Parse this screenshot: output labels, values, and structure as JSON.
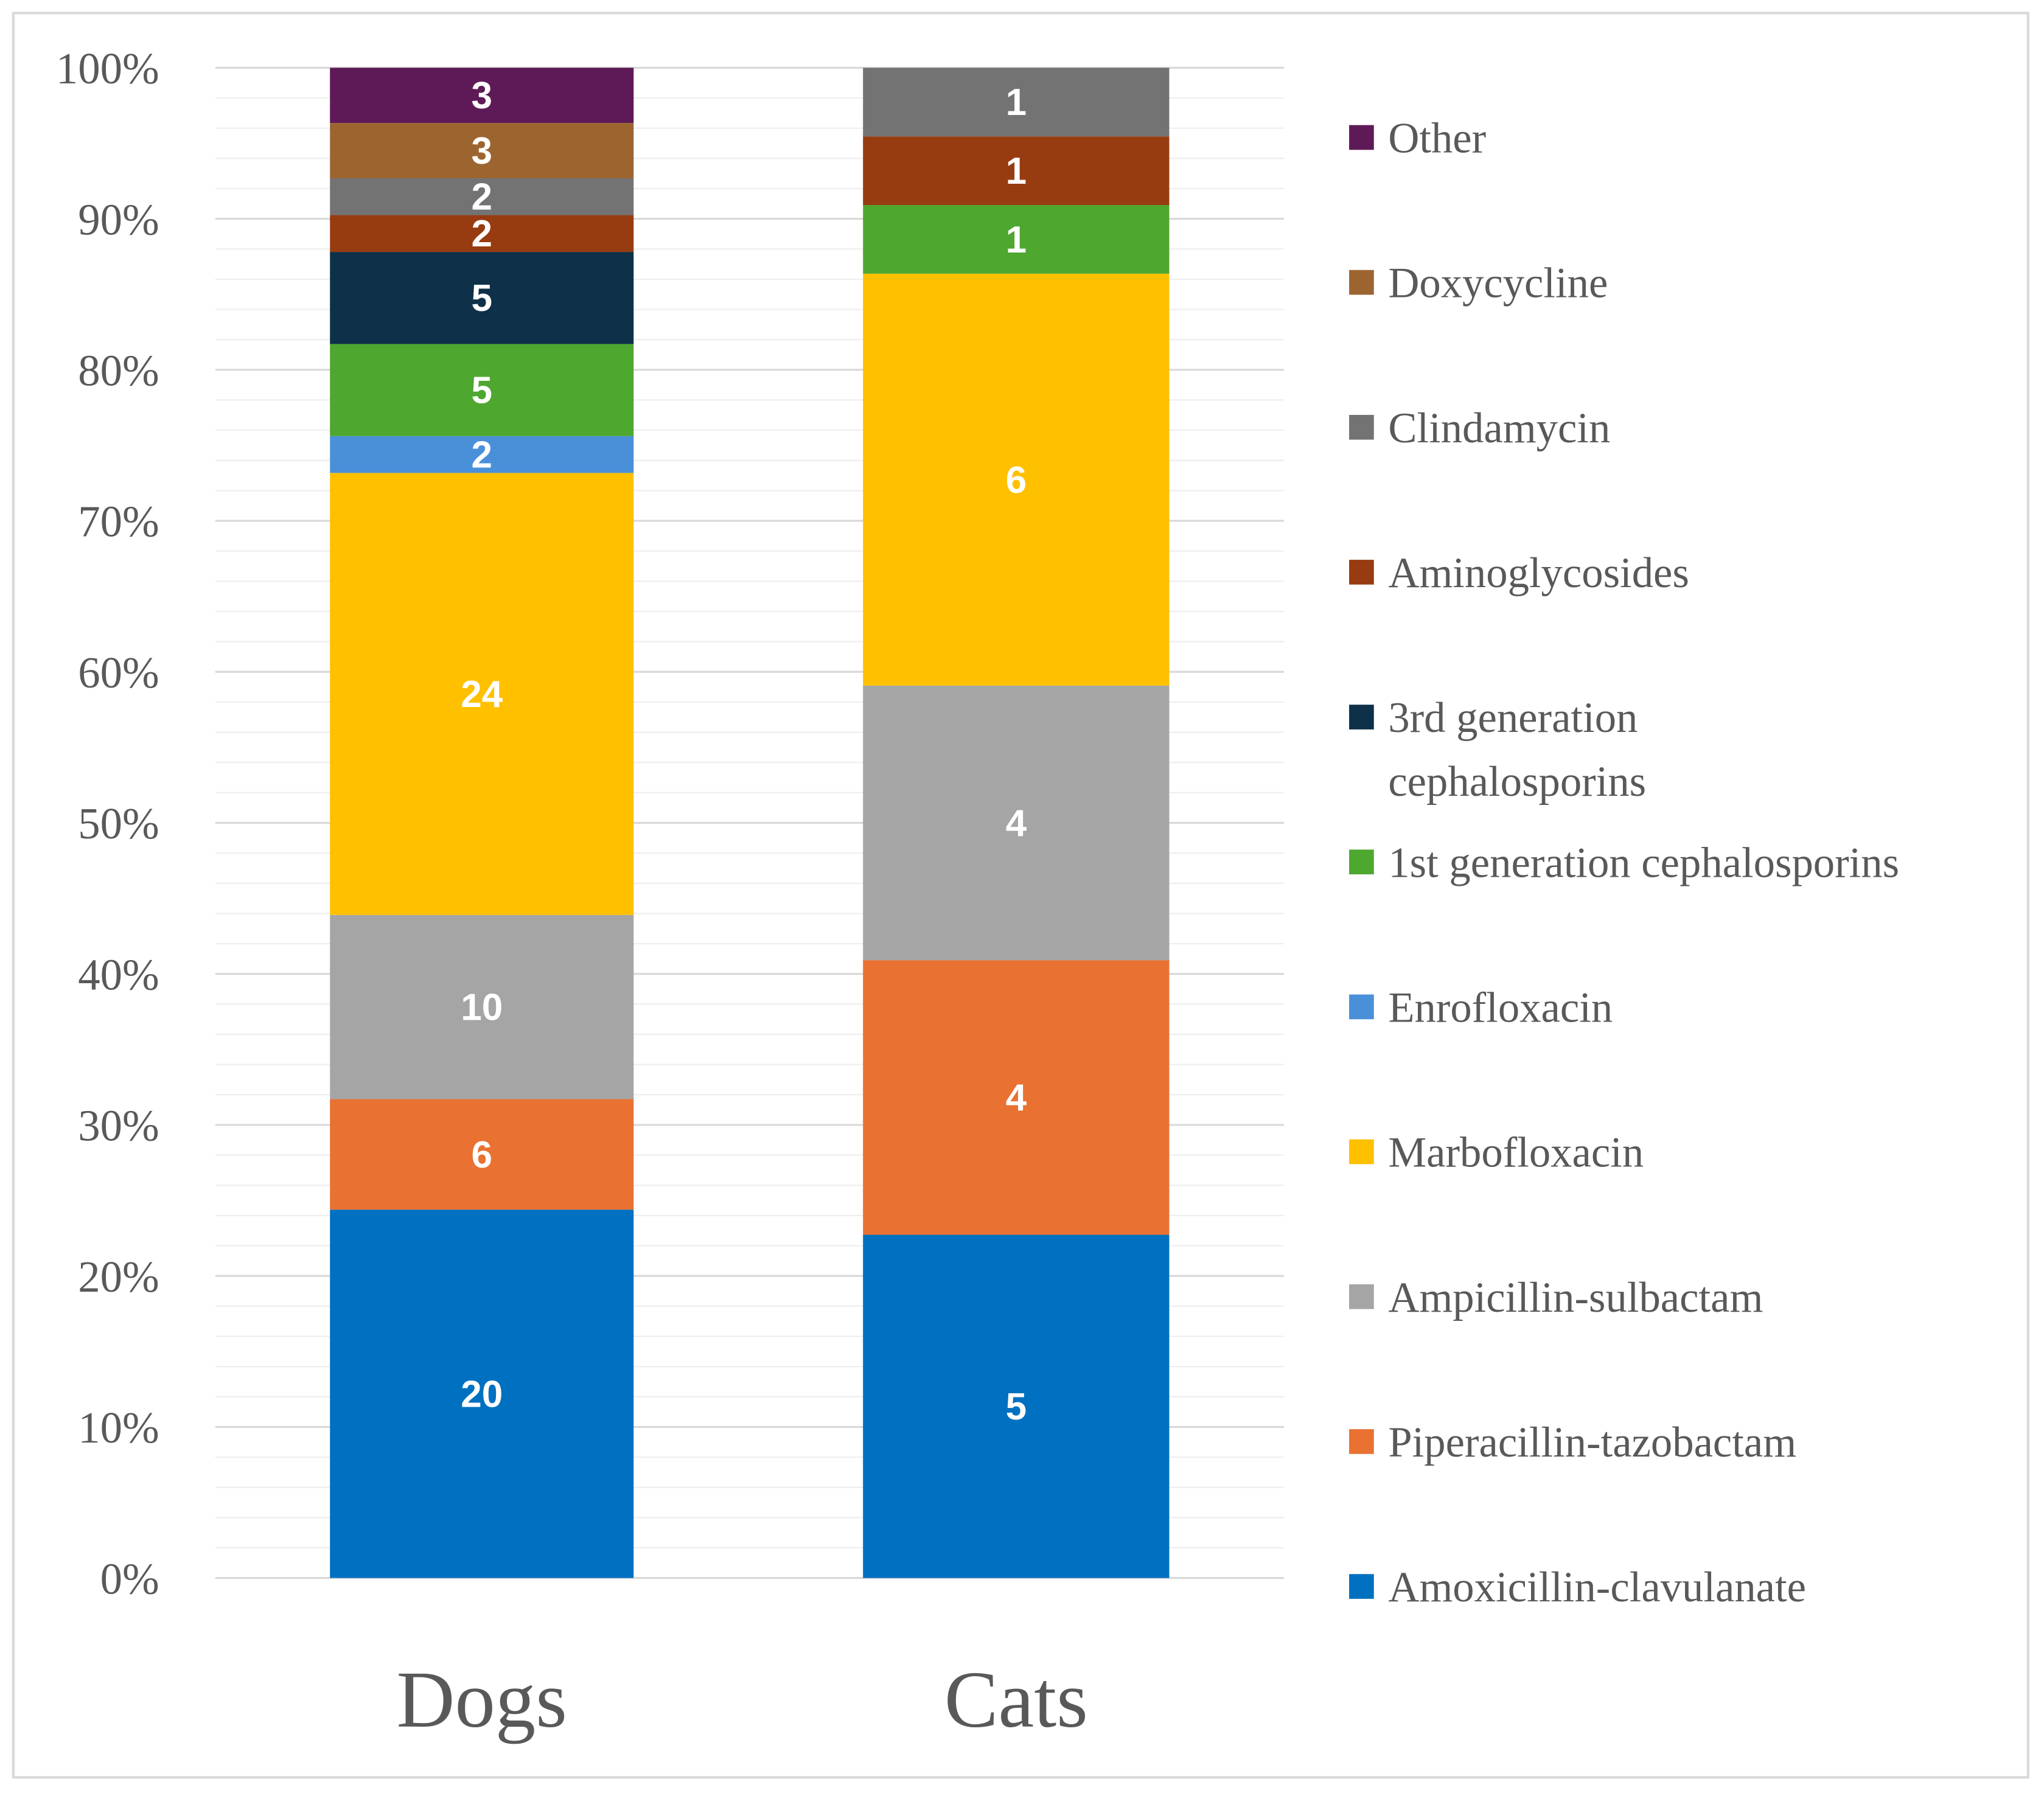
{
  "chart_data": {
    "type": "bar",
    "stacked": true,
    "normalized_percent": true,
    "title": "",
    "xlabel": "",
    "ylabel": "",
    "ylim": [
      0,
      100
    ],
    "yticks": [
      "0%",
      "10%",
      "20%",
      "30%",
      "40%",
      "50%",
      "60%",
      "70%",
      "80%",
      "90%",
      "100%"
    ],
    "grid": true,
    "legend_position": "right",
    "categories": [
      "Dogs",
      "Cats"
    ],
    "series": [
      {
        "name": "Amoxicillin-clavulanate",
        "color": "#0070C0",
        "values": [
          20,
          5
        ]
      },
      {
        "name": "Piperacillin-tazobactam",
        "color": "#E97132",
        "values": [
          6,
          4
        ]
      },
      {
        "name": "Ampicillin-sulbactam",
        "color": "#A5A5A5",
        "values": [
          10,
          4
        ]
      },
      {
        "name": "Marbofloxacin",
        "color": "#FFC000",
        "values": [
          24,
          6
        ]
      },
      {
        "name": "Enrofloxacin",
        "color": "#4A90D9",
        "values": [
          2,
          0
        ]
      },
      {
        "name": "1st generation cephalosporins",
        "color": "#4EA72E",
        "values": [
          5,
          1
        ]
      },
      {
        "name": "3rd generation cephalosporins",
        "legend_lines": [
          "3rd generation",
          "cephalosporins"
        ],
        "color": "#0E3049",
        "values": [
          5,
          0
        ]
      },
      {
        "name": "Aminoglycosides",
        "color": "#973C10",
        "values": [
          2,
          1
        ]
      },
      {
        "name": "Clindamycin",
        "color": "#737373",
        "values": [
          2,
          1
        ]
      },
      {
        "name": "Doxycycline",
        "color": "#9C6530",
        "values": [
          3,
          0
        ]
      },
      {
        "name": "Other",
        "color": "#5E1A56",
        "values": [
          3,
          0
        ]
      }
    ]
  }
}
